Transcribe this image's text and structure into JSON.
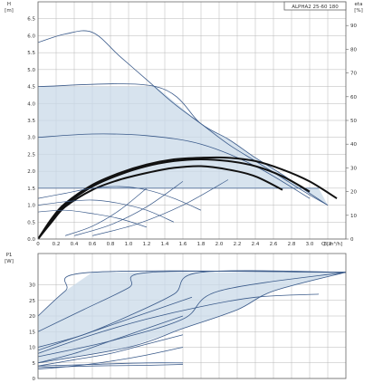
{
  "chart_data": [
    {
      "type": "line",
      "panel": "head",
      "model": "ALPHA2 25-60 180",
      "ylabel": "H",
      "yunit": "[m]",
      "xlabel": "Q",
      "xunit": "[m³/h]",
      "y2label": "eta",
      "y2unit": "[%]",
      "xlim": [
        0,
        3.4
      ],
      "ylim": [
        0,
        7.0
      ],
      "y2lim": [
        0,
        100
      ],
      "xticks": [
        0,
        0.2,
        0.4,
        0.6,
        0.8,
        1.0,
        1.2,
        1.4,
        1.6,
        1.8,
        2.0,
        2.2,
        2.4,
        2.6,
        2.8,
        3.0,
        3.2
      ],
      "xtick_labels": [
        "0",
        "0.2",
        "0.4",
        "0.6",
        "0.8",
        "1.0",
        "1.2",
        "1.4",
        "1.6",
        "1.8",
        "2.0",
        "2.2",
        "2.4",
        "2.6",
        "2.8",
        "3.0",
        "3.2"
      ],
      "yticks": [
        0,
        0.5,
        1.0,
        1.5,
        2.0,
        2.5,
        3.0,
        3.5,
        4.0,
        4.5,
        5.0,
        5.5,
        6.0,
        6.5
      ],
      "ytick_labels": [
        "0.0",
        "0.5",
        "1.0",
        "1.5",
        "2.0",
        "2.5",
        "3.0",
        "3.5",
        "4.0",
        "4.5",
        "5.0",
        "5.5",
        "6.0",
        "6.5"
      ],
      "y2ticks": [
        0,
        10,
        20,
        30,
        40,
        50,
        60,
        70,
        80,
        90
      ],
      "y2tick_labels": [
        "0",
        "10",
        "20",
        "30",
        "40",
        "50",
        "60",
        "70",
        "80",
        "90"
      ],
      "grid": true,
      "fill_color": "#c9d9e8",
      "series": [
        {
          "style": "upper",
          "x": [
            0,
            0.3,
            0.6,
            0.9,
            1.2,
            1.5,
            1.8,
            2.1,
            2.4,
            2.7,
            3.0,
            3.2
          ],
          "values": [
            5.8,
            6.05,
            6.1,
            5.4,
            4.7,
            4.0,
            3.4,
            2.8,
            2.3,
            1.8,
            1.3,
            1.0
          ]
        },
        {
          "style": "hatch",
          "x": [
            0,
            1.3,
            1.8,
            2.1,
            2.4,
            2.7,
            3.0,
            3.2
          ],
          "values": [
            4.5,
            4.5,
            3.4,
            2.95,
            2.4,
            1.9,
            1.35,
            1.0
          ]
        },
        {
          "style": "hatch",
          "x": [
            0,
            0.6,
            1.2,
            1.8,
            2.4,
            3.0
          ],
          "values": [
            3.0,
            3.1,
            3.05,
            2.8,
            2.15,
            1.2
          ]
        },
        {
          "style": "hatch",
          "x": [
            0,
            1.4,
            2.1,
            2.7,
            3.1
          ],
          "values": [
            1.5,
            1.5,
            1.5,
            1.5,
            1.5
          ]
        },
        {
          "style": "bold",
          "x": [
            0,
            0.15,
            0.3,
            0.6,
            0.9,
            1.2,
            1.5,
            1.8,
            2.1,
            2.4,
            2.7,
            3.0,
            3.3
          ],
          "values": [
            0,
            0.6,
            1.05,
            1.6,
            1.95,
            2.2,
            2.35,
            2.4,
            2.4,
            2.3,
            2.05,
            1.7,
            1.2
          ]
        },
        {
          "style": "bold",
          "x": [
            0,
            0.15,
            0.3,
            0.6,
            0.9,
            1.2,
            1.5,
            1.8,
            2.1,
            2.4,
            2.7,
            3.0
          ],
          "values": [
            0,
            0.55,
            1.0,
            1.55,
            1.9,
            2.15,
            2.3,
            2.35,
            2.3,
            2.15,
            1.85,
            1.4
          ]
        },
        {
          "style": "bold",
          "x": [
            0,
            0.15,
            0.3,
            0.6,
            0.9,
            1.2,
            1.5,
            1.8,
            2.1,
            2.4,
            2.7
          ],
          "values": [
            0,
            0.5,
            0.95,
            1.45,
            1.75,
            1.95,
            2.1,
            2.15,
            2.05,
            1.85,
            1.45
          ]
        },
        {
          "style": "thin",
          "x": [
            0,
            0.3,
            0.6,
            0.9,
            1.2,
            1.5,
            1.8
          ],
          "values": [
            1.2,
            1.35,
            1.5,
            1.55,
            1.45,
            1.2,
            0.85
          ]
        },
        {
          "style": "thin",
          "x": [
            0,
            0.3,
            0.6,
            0.9,
            1.2,
            1.5
          ],
          "values": [
            1.0,
            1.1,
            1.15,
            1.05,
            0.85,
            0.5
          ]
        },
        {
          "style": "thin",
          "x": [
            0,
            0.3,
            0.6,
            0.9,
            1.2
          ],
          "values": [
            0.8,
            0.85,
            0.75,
            0.6,
            0.35
          ]
        },
        {
          "style": "system",
          "x": [
            0.3,
            0.6,
            0.9,
            1.2
          ],
          "values": [
            0.1,
            0.38,
            0.85,
            1.5
          ]
        },
        {
          "style": "system",
          "x": [
            0.4,
            0.8,
            1.2,
            1.6
          ],
          "values": [
            0.1,
            0.42,
            0.95,
            1.7
          ]
        },
        {
          "style": "system",
          "x": [
            0.6,
            1.1,
            1.6,
            2.1
          ],
          "values": [
            0.1,
            0.45,
            1.0,
            1.75
          ]
        }
      ]
    },
    {
      "type": "line",
      "panel": "power",
      "ylabel": "P1",
      "yunit": "[W]",
      "xlim": [
        0,
        3.4
      ],
      "ylim": [
        0,
        40
      ],
      "yticks": [
        0,
        5,
        10,
        15,
        20,
        25,
        30
      ],
      "ytick_labels": [
        "0",
        "5",
        "10",
        "15",
        "20",
        "25",
        "30"
      ],
      "grid": true,
      "fill_color": "#c9d9e8",
      "series": [
        {
          "style": "thin",
          "x": [
            0,
            0.3,
            0.6,
            3.4
          ],
          "values": [
            20,
            28,
            34,
            34
          ]
        },
        {
          "style": "thin",
          "x": [
            0,
            0.5,
            1.0,
            1.25,
            3.4
          ],
          "values": [
            15,
            22,
            29,
            34,
            34
          ]
        },
        {
          "style": "thin",
          "x": [
            0,
            0.5,
            1.0,
            1.5,
            1.8,
            3.4
          ],
          "values": [
            10,
            14,
            20,
            27,
            34,
            34
          ]
        },
        {
          "style": "thin",
          "x": [
            0,
            0.8,
            1.6,
            2.0,
            3.4
          ],
          "values": [
            7,
            12,
            19,
            28,
            34
          ]
        },
        {
          "style": "thin",
          "x": [
            0,
            1.0,
            1.6,
            2.2,
            2.6,
            3.4
          ],
          "values": [
            5,
            10,
            16,
            22,
            28,
            34
          ]
        },
        {
          "style": "thin",
          "x": [
            0,
            0.6,
            1.2,
            1.8,
            2.4,
            3.1
          ],
          "values": [
            8,
            14,
            19,
            23,
            26,
            27
          ]
        },
        {
          "style": "thin",
          "x": [
            0,
            0.5,
            1.0,
            1.4,
            1.7
          ],
          "values": [
            9,
            14,
            19,
            23,
            26
          ]
        },
        {
          "style": "thin",
          "x": [
            0,
            0.4,
            0.8,
            1.2,
            1.6
          ],
          "values": [
            5,
            8,
            12,
            16,
            20
          ]
        },
        {
          "style": "thin",
          "x": [
            0,
            0.4,
            0.8,
            1.2,
            1.6
          ],
          "values": [
            4,
            6,
            8,
            11,
            14
          ]
        },
        {
          "style": "thin",
          "x": [
            0,
            0.4,
            0.8,
            1.2,
            1.6
          ],
          "values": [
            3,
            4,
            5.5,
            7.5,
            10
          ]
        },
        {
          "style": "thin",
          "x": [
            0,
            0.6,
            1.2,
            1.6
          ],
          "values": [
            4,
            4.5,
            5,
            5
          ]
        },
        {
          "style": "thin",
          "x": [
            0,
            0.6,
            1.2,
            1.6
          ],
          "values": [
            3.5,
            4,
            4.2,
            4.5
          ]
        }
      ]
    }
  ]
}
